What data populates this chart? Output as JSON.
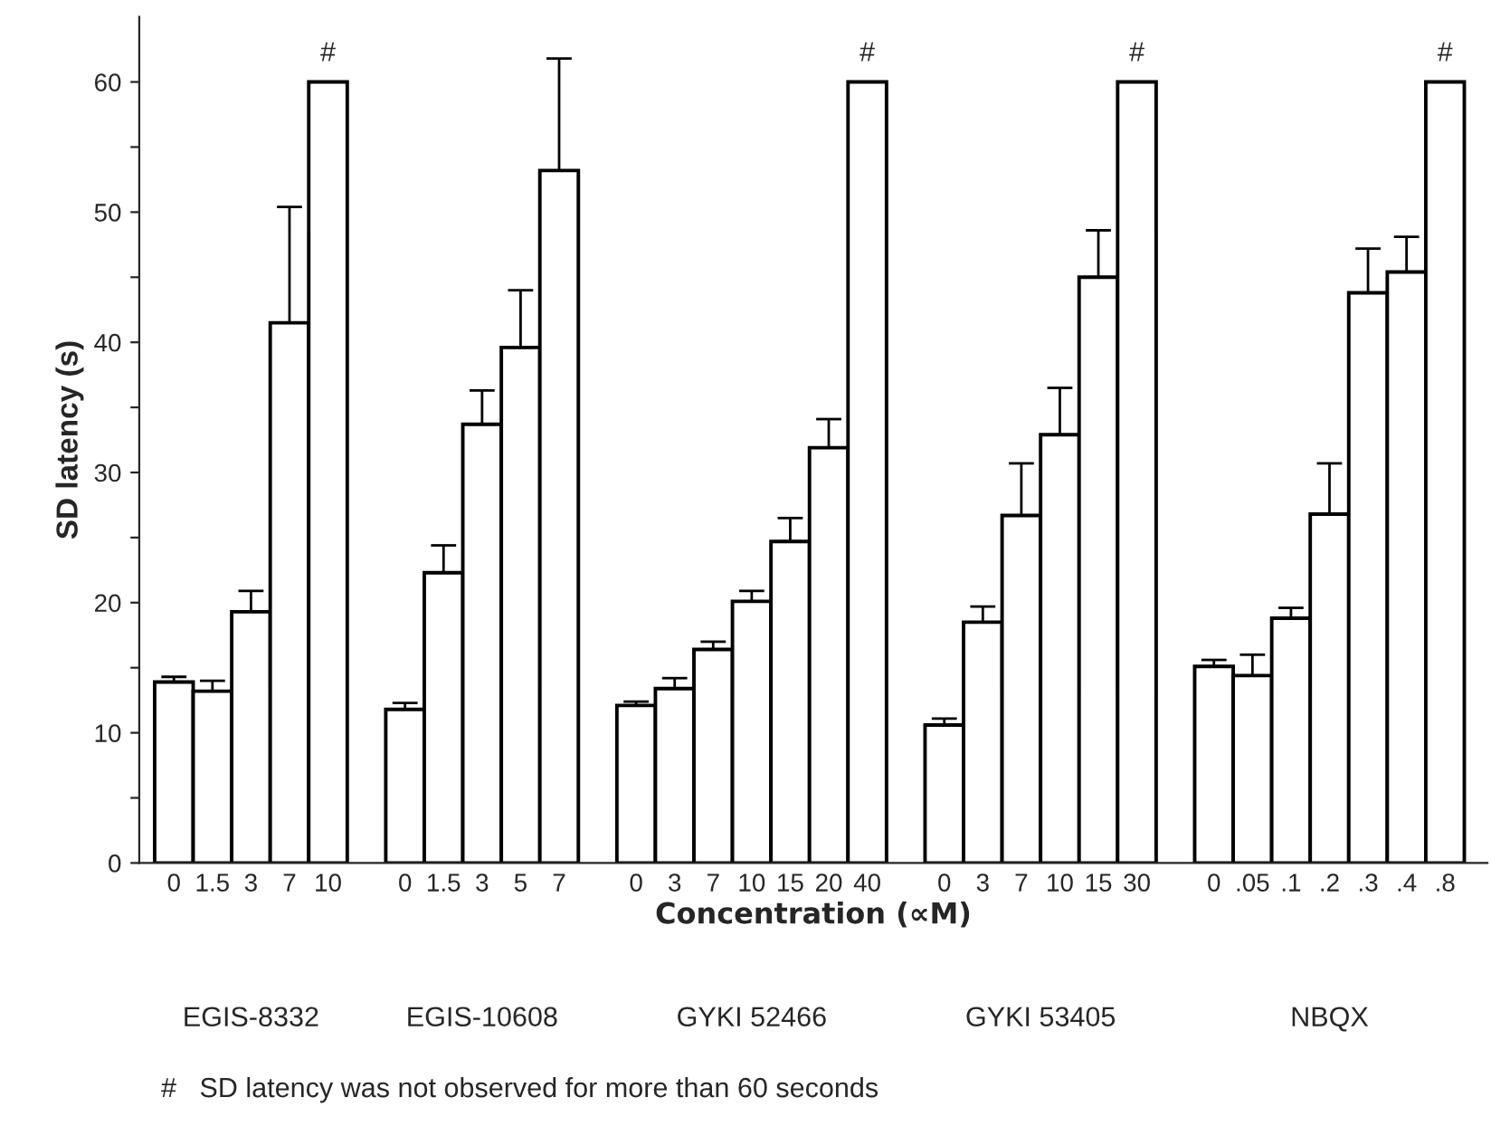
{
  "chart_data": {
    "type": "bar",
    "xlabel": "Concentration (∝M)",
    "ylabel": "SD latency (s)",
    "categories": [
      "0",
      "1.5",
      "3",
      "7",
      "10",
      null,
      "0",
      "1.5",
      "3",
      "5",
      "7",
      null,
      "0",
      "3",
      "7",
      "10",
      "15",
      "20",
      "40",
      null,
      "0",
      "3",
      "7",
      "10",
      "15",
      "30",
      null,
      "0",
      ".05",
      ".1",
      ".2",
      ".3",
      ".4",
      ".8"
    ],
    "values": [
      13.9,
      13.2,
      19.3,
      41.5,
      60,
      null,
      11.8,
      22.3,
      33.7,
      39.6,
      53.2,
      null,
      12.1,
      13.4,
      16.4,
      20.1,
      24.7,
      31.9,
      60,
      null,
      10.6,
      18.5,
      26.7,
      32.9,
      45.0,
      60,
      null,
      15.1,
      14.4,
      18.8,
      26.8,
      43.8,
      45.4,
      60
    ],
    "errors": [
      [
        13.9,
        14.3
      ],
      [
        13.2,
        14.0
      ],
      [
        19.3,
        20.9
      ],
      [
        41.5,
        50.4
      ],
      null,
      null,
      [
        11.8,
        12.3
      ],
      [
        22.3,
        24.4
      ],
      [
        33.7,
        36.3
      ],
      [
        39.6,
        44.0
      ],
      [
        53.2,
        61.8
      ],
      null,
      [
        12.1,
        12.4
      ],
      [
        13.4,
        14.2
      ],
      [
        16.4,
        17.0
      ],
      [
        20.1,
        20.9
      ],
      [
        24.7,
        26.5
      ],
      [
        31.9,
        34.1
      ],
      null,
      null,
      [
        10.6,
        11.1
      ],
      [
        18.5,
        19.7
      ],
      [
        26.7,
        30.7
      ],
      [
        32.9,
        36.5
      ],
      [
        45.0,
        48.6
      ],
      null,
      null,
      [
        15.1,
        15.6
      ],
      [
        14.4,
        16.0
      ],
      [
        18.8,
        19.6
      ],
      [
        26.8,
        30.7
      ],
      [
        43.8,
        47.2
      ],
      [
        45.4,
        48.1
      ],
      null
    ],
    "value_labels": [
      null,
      null,
      null,
      null,
      "#",
      null,
      null,
      null,
      null,
      null,
      null,
      null,
      null,
      null,
      null,
      null,
      null,
      null,
      "#",
      null,
      null,
      null,
      null,
      null,
      null,
      "#",
      null,
      null,
      null,
      null,
      null,
      null,
      null,
      "#"
    ],
    "color": "#ffffff",
    "ylim": [
      0,
      65
    ],
    "yticks": [
      0,
      {
        "value": 5,
        "label": null
      },
      10,
      {
        "value": 15,
        "label": null
      },
      20,
      {
        "value": 25,
        "label": null
      },
      30,
      {
        "value": 35,
        "label": null
      },
      40,
      {
        "value": 45,
        "label": null
      },
      50,
      {
        "value": 55,
        "label": null
      },
      60
    ],
    "grid": false,
    "annotations": [
      "EGIS-8332",
      "EGIS-10608",
      "GYKI 52466",
      "GYKI 53405",
      "NBQX",
      "#   SD latency was not observed for more than 60 seconds"
    ]
  }
}
